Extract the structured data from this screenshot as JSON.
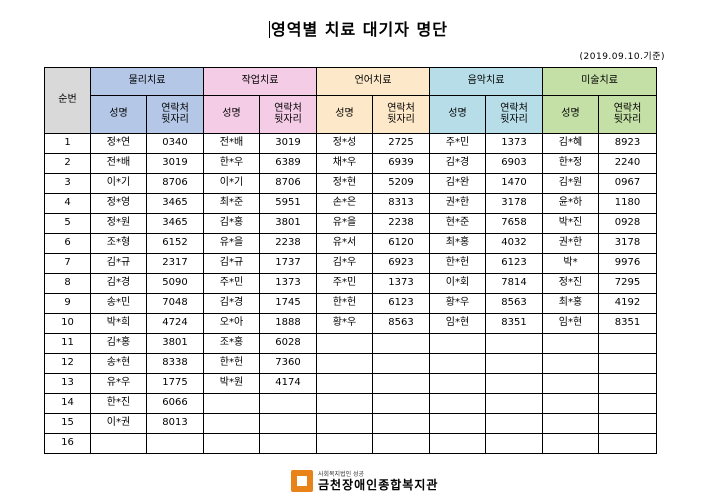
{
  "title": "영역별 치료 대기자 명단",
  "date_note": "(2019.09.10.기준)",
  "table": {
    "number_header": "순번",
    "groups": [
      {
        "label": "물리치료",
        "color": "#b4c7e7"
      },
      {
        "label": "작업치료",
        "color": "#f4cce6"
      },
      {
        "label": "언어치료",
        "color": "#fde9c9"
      },
      {
        "label": "음악치료",
        "color": "#b7dee8"
      },
      {
        "label": "미술치료",
        "color": "#c4e0a6"
      }
    ],
    "sub_name": "성명",
    "sub_contact": "연락처\n뒷자리",
    "rows": [
      {
        "n": "1",
        "c": [
          [
            "정*연",
            "0340"
          ],
          [
            "전*배",
            "3019"
          ],
          [
            "정*성",
            "2725"
          ],
          [
            "주*민",
            "1373"
          ],
          [
            "김*혜",
            "8923"
          ]
        ]
      },
      {
        "n": "2",
        "c": [
          [
            "전*배",
            "3019"
          ],
          [
            "한*우",
            "6389"
          ],
          [
            "채*우",
            "6939"
          ],
          [
            "김*경",
            "6903"
          ],
          [
            "한*정",
            "2240"
          ]
        ]
      },
      {
        "n": "3",
        "c": [
          [
            "이*기",
            "8706"
          ],
          [
            "이*기",
            "8706"
          ],
          [
            "정*현",
            "5209"
          ],
          [
            "김*완",
            "1470"
          ],
          [
            "김*원",
            "0967"
          ]
        ]
      },
      {
        "n": "4",
        "c": [
          [
            "정*영",
            "3465"
          ],
          [
            "최*준",
            "5951"
          ],
          [
            "손*은",
            "8313"
          ],
          [
            "권*한",
            "3178"
          ],
          [
            "윤*하",
            "1180"
          ]
        ]
      },
      {
        "n": "5",
        "c": [
          [
            "정*원",
            "3465"
          ],
          [
            "김*홍",
            "3801"
          ],
          [
            "유*을",
            "2238"
          ],
          [
            "현*준",
            "7658"
          ],
          [
            "박*진",
            "0928"
          ]
        ]
      },
      {
        "n": "6",
        "c": [
          [
            "조*형",
            "6152"
          ],
          [
            "유*을",
            "2238"
          ],
          [
            "유*서",
            "6120"
          ],
          [
            "최*홍",
            "4032"
          ],
          [
            "권*한",
            "3178"
          ]
        ]
      },
      {
        "n": "7",
        "c": [
          [
            "김*규",
            "2317"
          ],
          [
            "김*규",
            "1737"
          ],
          [
            "김*우",
            "6923"
          ],
          [
            "한*헌",
            "6123"
          ],
          [
            "박*",
            "9976"
          ]
        ]
      },
      {
        "n": "8",
        "c": [
          [
            "김*경",
            "5090"
          ],
          [
            "주*민",
            "1373"
          ],
          [
            "주*민",
            "1373"
          ],
          [
            "이*회",
            "7814"
          ],
          [
            "정*진",
            "7295"
          ]
        ]
      },
      {
        "n": "9",
        "c": [
          [
            "송*민",
            "7048"
          ],
          [
            "김*경",
            "1745"
          ],
          [
            "한*헌",
            "6123"
          ],
          [
            "황*우",
            "8563"
          ],
          [
            "최*홍",
            "4192"
          ]
        ]
      },
      {
        "n": "10",
        "c": [
          [
            "박*희",
            "4724"
          ],
          [
            "오*아",
            "1888"
          ],
          [
            "황*우",
            "8563"
          ],
          [
            "임*현",
            "8351"
          ],
          [
            "임*현",
            "8351"
          ]
        ]
      },
      {
        "n": "11",
        "c": [
          [
            "김*홍",
            "3801"
          ],
          [
            "조*홍",
            "6028"
          ],
          [
            "",
            ""
          ],
          [
            "",
            ""
          ],
          [
            "",
            ""
          ]
        ]
      },
      {
        "n": "12",
        "c": [
          [
            "송*현",
            "8338"
          ],
          [
            "한*헌",
            "7360"
          ],
          [
            "",
            ""
          ],
          [
            "",
            ""
          ],
          [
            "",
            ""
          ]
        ]
      },
      {
        "n": "13",
        "c": [
          [
            "유*우",
            "1775"
          ],
          [
            "박*원",
            "4174"
          ],
          [
            "",
            ""
          ],
          [
            "",
            ""
          ],
          [
            "",
            ""
          ]
        ]
      },
      {
        "n": "14",
        "c": [
          [
            "한*진",
            "6066"
          ],
          [
            "",
            ""
          ],
          [
            "",
            ""
          ],
          [
            "",
            ""
          ],
          [
            "",
            ""
          ]
        ]
      },
      {
        "n": "15",
        "c": [
          [
            "이*권",
            "8013"
          ],
          [
            "",
            ""
          ],
          [
            "",
            ""
          ],
          [
            "",
            ""
          ],
          [
            "",
            ""
          ]
        ]
      },
      {
        "n": "16",
        "c": [
          [
            "",
            ""
          ],
          [
            "",
            ""
          ],
          [
            "",
            ""
          ],
          [
            "",
            ""
          ],
          [
            "",
            ""
          ]
        ]
      }
    ]
  },
  "footer": {
    "org_small": "사회복지법인 성공",
    "org_name": "금천장애인종합복지관",
    "logo_color": "#e8831a"
  }
}
